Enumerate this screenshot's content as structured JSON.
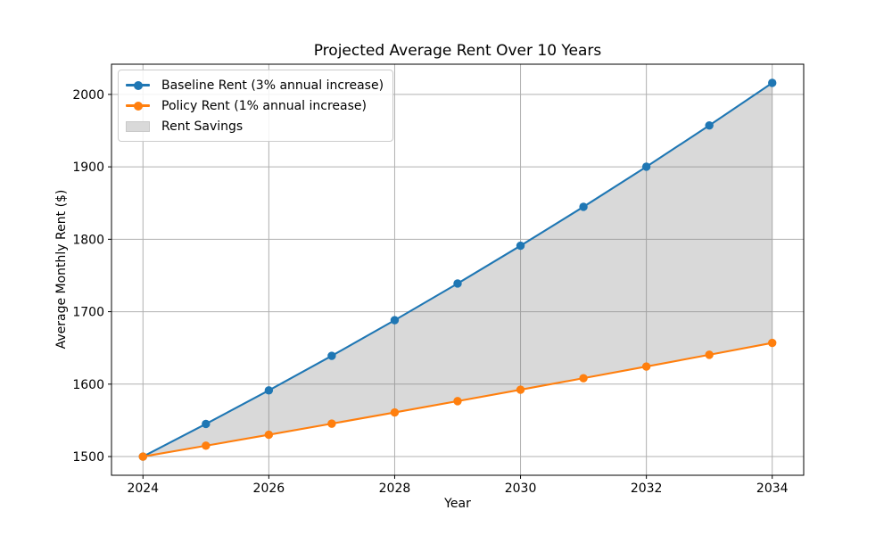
{
  "chart_data": {
    "type": "line",
    "title": "Projected Average Rent Over 10 Years",
    "xlabel": "Year",
    "ylabel": "Average Monthly Rent ($)",
    "x": [
      2024,
      2025,
      2026,
      2027,
      2028,
      2029,
      2030,
      2031,
      2032,
      2033,
      2034
    ],
    "series": [
      {
        "name": "Baseline Rent (3% annual increase)",
        "color": "#1f77b4",
        "marker": "circle",
        "values": [
          1500.0,
          1545.0,
          1591.35,
          1639.09,
          1688.26,
          1738.91,
          1791.08,
          1844.81,
          1900.15,
          1957.16,
          2015.87
        ]
      },
      {
        "name": "Policy Rent (1% annual increase)",
        "color": "#ff7f0e",
        "marker": "circle",
        "values": [
          1500.0,
          1515.0,
          1530.15,
          1545.45,
          1560.91,
          1576.52,
          1592.28,
          1608.2,
          1624.29,
          1640.53,
          1656.93
        ]
      }
    ],
    "fill_between": {
      "label": "Rent Savings",
      "between_series": [
        0,
        1
      ],
      "color": "#808080",
      "opacity": 0.3
    },
    "xticks": [
      2024,
      2026,
      2028,
      2030,
      2032,
      2034
    ],
    "yticks": [
      1500,
      1600,
      1700,
      1800,
      1900,
      2000
    ],
    "xlim": [
      2023.5,
      2034.5
    ],
    "ylim": [
      1474.2,
      2041.7
    ],
    "grid": true,
    "grid_color": "#b0b0b0",
    "spine_color": "#000000",
    "legend_position": "upper left",
    "legend": [
      {
        "label": "Baseline Rent (3% annual increase)",
        "swatch": "line-marker",
        "color": "#1f77b4"
      },
      {
        "label": "Policy Rent (1% annual increase)",
        "swatch": "line-marker",
        "color": "#ff7f0e"
      },
      {
        "label": "Rent Savings",
        "swatch": "patch",
        "color": "#d9d9d9"
      }
    ]
  }
}
